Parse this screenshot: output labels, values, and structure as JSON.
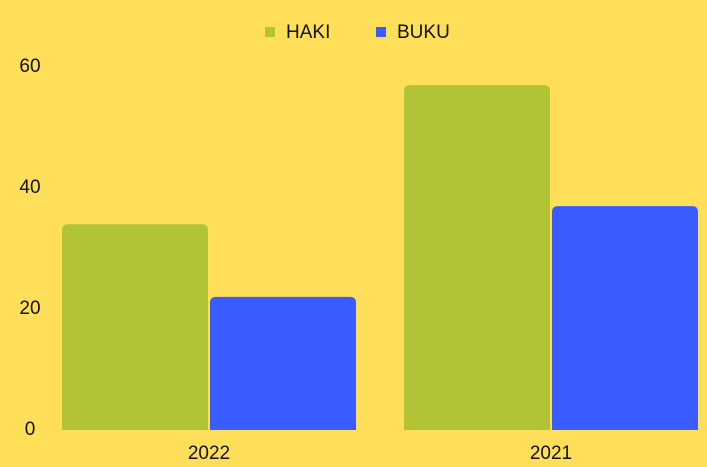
{
  "chart_data": {
    "type": "bar",
    "categories": [
      "2022",
      "2021"
    ],
    "series": [
      {
        "name": "HAKI",
        "color": "#B2C436",
        "values": [
          34,
          57
        ]
      },
      {
        "name": "BUKU",
        "color": "#3A5BFF",
        "values": [
          22,
          37
        ]
      }
    ],
    "ylim": [
      0,
      60
    ],
    "yticks": [
      0,
      20,
      40,
      60
    ],
    "grid": false,
    "legend": "top"
  }
}
